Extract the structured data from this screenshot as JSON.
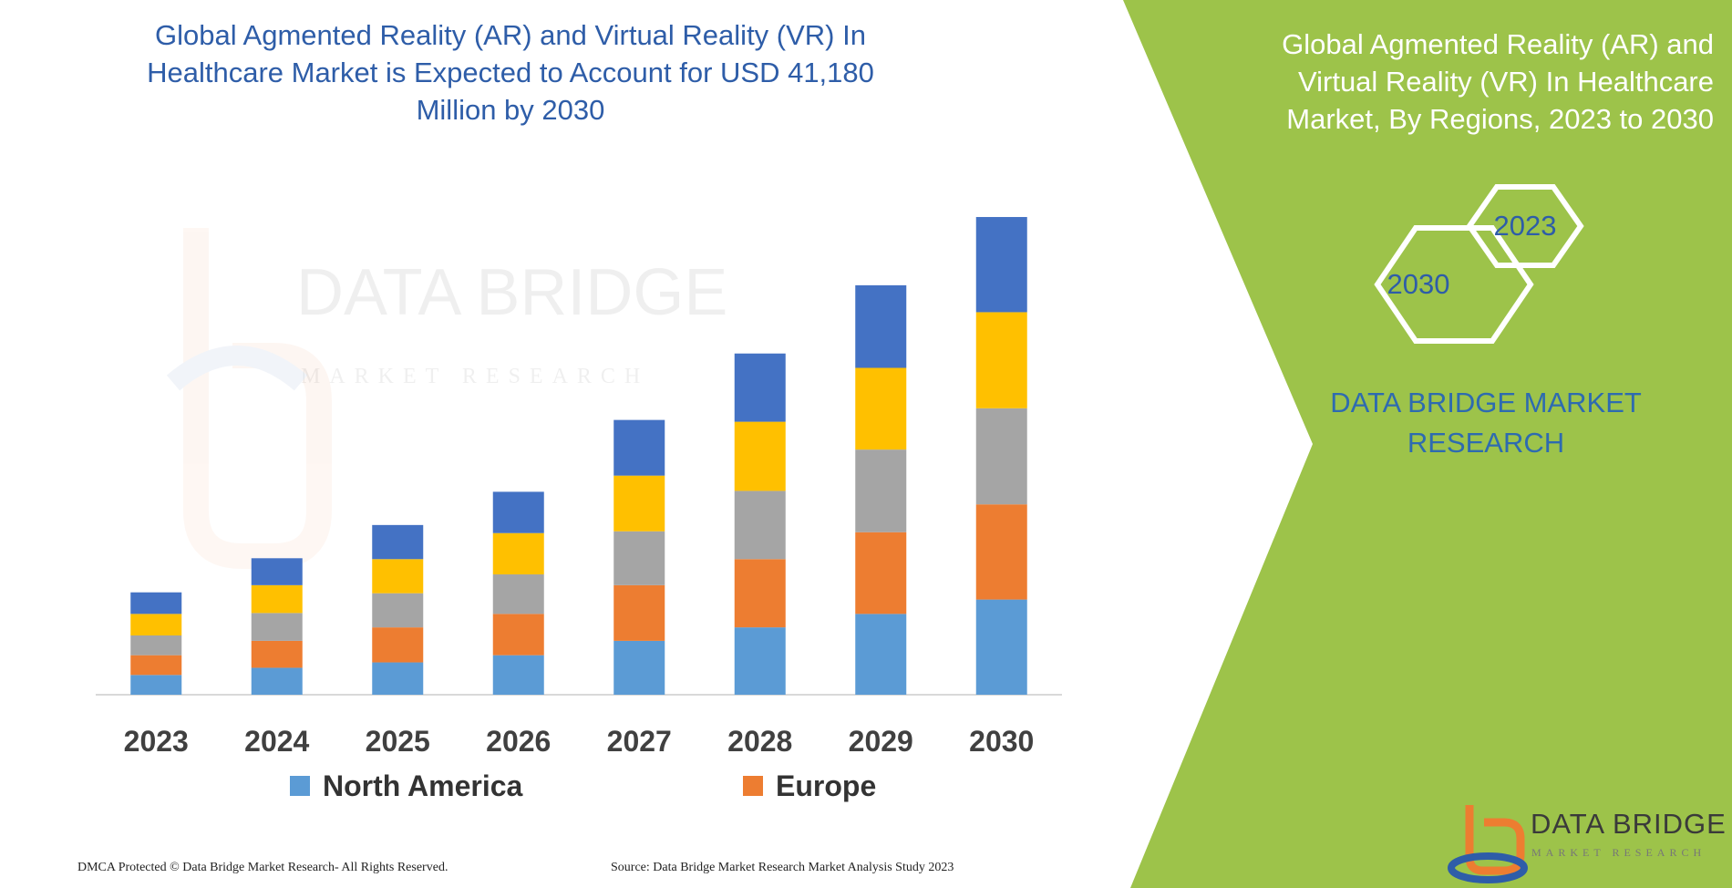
{
  "header": {
    "title": "Global Agmented Reality (AR) and Virtual Reality (VR) In Healthcare Market is Expected to Account for USD 41,180 Million by 2030"
  },
  "side_panel": {
    "title": "Global Agmented Reality (AR) and Virtual Reality (VR) In Healthcare Market, By Regions, 2023 to 2030",
    "hex_labels": [
      "2023",
      "2030"
    ],
    "brand": "DATA BRIDGE MARKET RESEARCH"
  },
  "logo": {
    "name": "DATA BRIDGE",
    "tagline": "MARKET RESEARCH"
  },
  "footer": {
    "left": "DMCA Protected © Data Bridge Market Research- All Rights Reserved.",
    "right": "Source: Data Bridge Market Research Market Analysis Study 2023"
  },
  "watermark": {
    "line1": "DATA BRIDGE",
    "line2": "MARKET RESEARCH"
  },
  "colors": {
    "panel_green": "#9dc34a",
    "title_blue": "#2e5da8"
  },
  "chart_data": {
    "type": "bar",
    "stacked": true,
    "categories": [
      "2023",
      "2024",
      "2025",
      "2026",
      "2027",
      "2028",
      "2029",
      "2030"
    ],
    "series": [
      {
        "name": "North America",
        "color": "#5b9bd5",
        "values": [
          2.2,
          3.0,
          3.6,
          4.4,
          6.0,
          7.5,
          9.0,
          10.6
        ]
      },
      {
        "name": "Europe",
        "color": "#ed7d31",
        "values": [
          2.2,
          3.0,
          3.9,
          4.6,
          6.2,
          7.6,
          9.1,
          10.6
        ]
      },
      {
        "name": "",
        "color": "#a5a5a5",
        "values": [
          2.2,
          3.1,
          3.8,
          4.4,
          6.0,
          7.6,
          9.2,
          10.7
        ]
      },
      {
        "name": "",
        "color": "#ffc000",
        "values": [
          2.4,
          3.1,
          3.8,
          4.6,
          6.2,
          7.7,
          9.1,
          10.7
        ]
      },
      {
        "name": "",
        "color": "#4472c4",
        "values": [
          2.4,
          3.0,
          3.8,
          4.6,
          6.2,
          7.6,
          9.2,
          10.6
        ]
      }
    ],
    "xlabel": "",
    "ylabel": "",
    "ylim": [
      0,
      53
    ],
    "grid": false,
    "legend": "bottom"
  }
}
